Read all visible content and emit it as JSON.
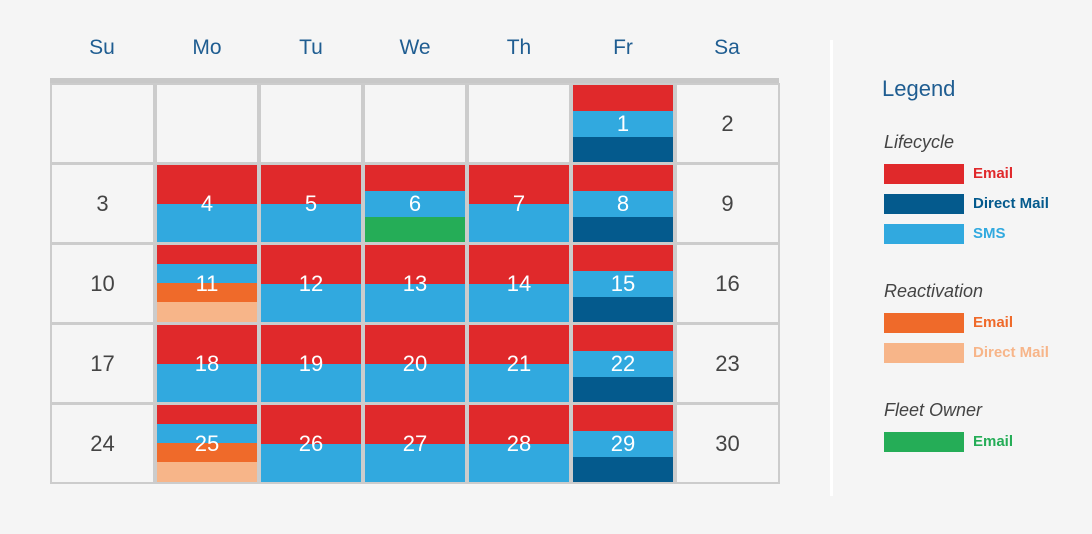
{
  "colors": {
    "lifecycle_email": "#e0292b",
    "lifecycle_direct_mail": "#045a8d",
    "lifecycle_sms": "#31a9df",
    "reactivation_email": "#ef6a2a",
    "reactivation_direct_mail": "#f7b589",
    "fleet_owner_email": "#25ad57"
  },
  "weekdays": [
    "Su",
    "Mo",
    "Tu",
    "We",
    "Th",
    "Fr",
    "Sa"
  ],
  "calendar": {
    "weeks": [
      [
        {
          "day": "",
          "bands": []
        },
        {
          "day": "",
          "bands": []
        },
        {
          "day": "",
          "bands": []
        },
        {
          "day": "",
          "bands": []
        },
        {
          "day": "",
          "bands": []
        },
        {
          "day": "1",
          "bands": [
            [
              "lifecycle_email",
              1
            ],
            [
              "lifecycle_sms",
              1
            ],
            [
              "lifecycle_direct_mail",
              1
            ]
          ]
        },
        {
          "day": "2",
          "bands": []
        }
      ],
      [
        {
          "day": "3",
          "bands": []
        },
        {
          "day": "4",
          "bands": [
            [
              "lifecycle_email",
              1
            ],
            [
              "lifecycle_sms",
              1
            ]
          ]
        },
        {
          "day": "5",
          "bands": [
            [
              "lifecycle_email",
              1
            ],
            [
              "lifecycle_sms",
              1
            ]
          ]
        },
        {
          "day": "6",
          "bands": [
            [
              "lifecycle_email",
              1
            ],
            [
              "lifecycle_sms",
              1
            ],
            [
              "fleet_owner_email",
              1
            ]
          ]
        },
        {
          "day": "7",
          "bands": [
            [
              "lifecycle_email",
              1
            ],
            [
              "lifecycle_sms",
              1
            ]
          ]
        },
        {
          "day": "8",
          "bands": [
            [
              "lifecycle_email",
              1
            ],
            [
              "lifecycle_sms",
              1
            ],
            [
              "lifecycle_direct_mail",
              1
            ]
          ]
        },
        {
          "day": "9",
          "bands": []
        }
      ],
      [
        {
          "day": "10",
          "bands": []
        },
        {
          "day": "11",
          "bands": [
            [
              "lifecycle_email",
              1
            ],
            [
              "lifecycle_sms",
              1
            ],
            [
              "reactivation_email",
              1
            ],
            [
              "reactivation_direct_mail",
              1
            ]
          ]
        },
        {
          "day": "12",
          "bands": [
            [
              "lifecycle_email",
              1
            ],
            [
              "lifecycle_sms",
              1
            ]
          ]
        },
        {
          "day": "13",
          "bands": [
            [
              "lifecycle_email",
              1
            ],
            [
              "lifecycle_sms",
              1
            ]
          ]
        },
        {
          "day": "14",
          "bands": [
            [
              "lifecycle_email",
              1
            ],
            [
              "lifecycle_sms",
              1
            ]
          ]
        },
        {
          "day": "15",
          "bands": [
            [
              "lifecycle_email",
              1
            ],
            [
              "lifecycle_sms",
              1
            ],
            [
              "lifecycle_direct_mail",
              1
            ]
          ]
        },
        {
          "day": "16",
          "bands": []
        }
      ],
      [
        {
          "day": "17",
          "bands": []
        },
        {
          "day": "18",
          "bands": [
            [
              "lifecycle_email",
              1
            ],
            [
              "lifecycle_sms",
              1
            ]
          ]
        },
        {
          "day": "19",
          "bands": [
            [
              "lifecycle_email",
              1
            ],
            [
              "lifecycle_sms",
              1
            ]
          ]
        },
        {
          "day": "20",
          "bands": [
            [
              "lifecycle_email",
              1
            ],
            [
              "lifecycle_sms",
              1
            ]
          ]
        },
        {
          "day": "21",
          "bands": [
            [
              "lifecycle_email",
              1
            ],
            [
              "lifecycle_sms",
              1
            ]
          ]
        },
        {
          "day": "22",
          "bands": [
            [
              "lifecycle_email",
              1
            ],
            [
              "lifecycle_sms",
              1
            ],
            [
              "lifecycle_direct_mail",
              1
            ]
          ]
        },
        {
          "day": "23",
          "bands": []
        }
      ],
      [
        {
          "day": "24",
          "bands": []
        },
        {
          "day": "25",
          "bands": [
            [
              "lifecycle_email",
              1
            ],
            [
              "lifecycle_sms",
              1
            ],
            [
              "reactivation_email",
              1
            ],
            [
              "reactivation_direct_mail",
              1
            ]
          ]
        },
        {
          "day": "26",
          "bands": [
            [
              "lifecycle_email",
              1
            ],
            [
              "lifecycle_sms",
              1
            ]
          ]
        },
        {
          "day": "27",
          "bands": [
            [
              "lifecycle_email",
              1
            ],
            [
              "lifecycle_sms",
              1
            ]
          ]
        },
        {
          "day": "28",
          "bands": [
            [
              "lifecycle_email",
              1
            ],
            [
              "lifecycle_sms",
              1
            ]
          ]
        },
        {
          "day": "29",
          "bands": [
            [
              "lifecycle_email",
              1
            ],
            [
              "lifecycle_sms",
              1
            ],
            [
              "lifecycle_direct_mail",
              1
            ]
          ]
        },
        {
          "day": "30",
          "bands": []
        }
      ]
    ]
  },
  "legend": {
    "title": "Legend",
    "groups": [
      {
        "title": "Lifecycle",
        "items": [
          {
            "label": "Email",
            "color_key": "lifecycle_email"
          },
          {
            "label": "Direct Mail",
            "color_key": "lifecycle_direct_mail"
          },
          {
            "label": "SMS",
            "color_key": "lifecycle_sms"
          }
        ]
      },
      {
        "title": "Reactivation",
        "items": [
          {
            "label": "Email",
            "color_key": "reactivation_email"
          },
          {
            "label": "Direct Mail",
            "color_key": "reactivation_direct_mail"
          }
        ]
      },
      {
        "title": "Fleet Owner",
        "items": [
          {
            "label": "Email",
            "color_key": "fleet_owner_email"
          }
        ]
      }
    ]
  }
}
